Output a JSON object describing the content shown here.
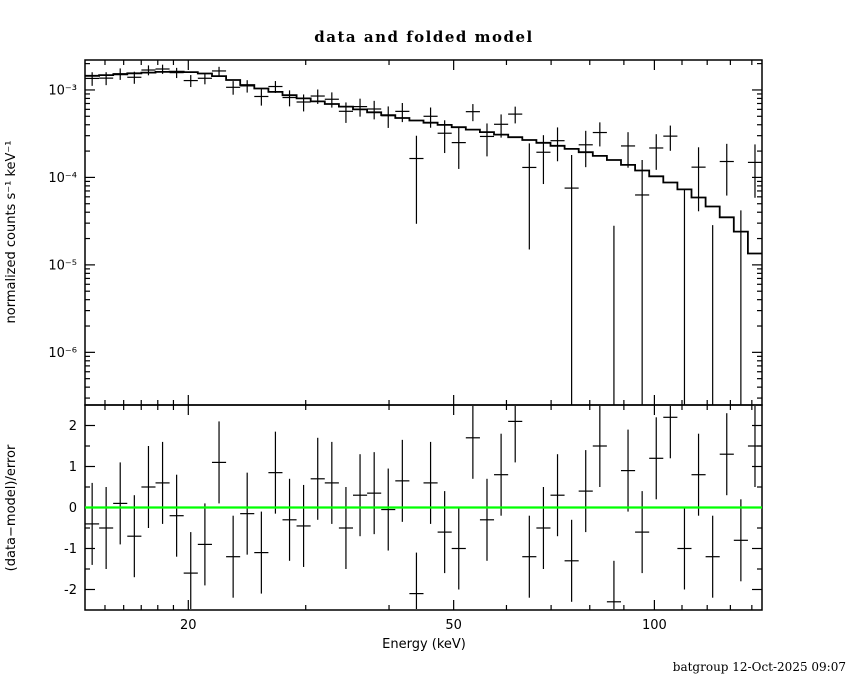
{
  "chart_data": {
    "type": "scatter",
    "title": "data and folded model",
    "xlabel": "Energy (keV)",
    "footer": "batgroup 12-Oct-2025 09:07",
    "xscale": "log",
    "xlim": [
      14,
      145
    ],
    "x_major_ticks": [
      20,
      50,
      100
    ],
    "x_tick_labels": [
      "20",
      "50",
      "100"
    ],
    "x_minor_ticks": [
      15,
      16,
      17,
      18,
      19,
      30,
      40,
      60,
      70,
      80,
      90,
      110,
      120,
      130,
      140
    ],
    "grid": "off",
    "legend": "none",
    "colors": {
      "data": "#000000",
      "model": "#000000",
      "zero_line": "#00ff00",
      "axes": "#000000",
      "background": "#ffffff"
    },
    "panels": [
      {
        "name": "spectrum",
        "ylabel": "normalized counts s⁻¹ keV⁻¹",
        "yscale": "log",
        "ylim": [
          2.5e-07,
          0.0022
        ],
        "y_major_ticks": [
          0.001,
          0.0001,
          1e-05,
          1e-06
        ],
        "y_tick_labels": [
          "10⁻³",
          "10⁻⁴",
          "10⁻⁵",
          "10⁻⁶"
        ]
      },
      {
        "name": "residuals",
        "ylabel": "(data−model)/error",
        "yscale": "linear",
        "ylim": [
          -2.5,
          2.5
        ],
        "y_major_ticks": [
          2,
          1,
          0,
          -1,
          -2
        ],
        "y_tick_labels": [
          "2",
          "1",
          "0",
          "-1",
          "-2"
        ],
        "y_minor_ticks": [
          1.5,
          0.5,
          -0.5,
          -1.5
        ],
        "zero_line": 0,
        "residual_error": 1
      }
    ],
    "bins": {
      "data_rule": "data = model + residual_sigma * error",
      "energy_kev": [
        14.35,
        15.06,
        15.81,
        16.6,
        17.43,
        18.3,
        19.21,
        20.17,
        21.18,
        22.24,
        23.35,
        24.51,
        25.74,
        27.02,
        28.37,
        29.78,
        31.27,
        32.83,
        34.47,
        36.19,
        38.0,
        39.89,
        41.88,
        43.97,
        46.17,
        48.47,
        50.89,
        53.43,
        56.1,
        58.9,
        61.84,
        64.93,
        68.17,
        71.57,
        75.14,
        78.89,
        82.83,
        86.96,
        91.3,
        95.86,
        100.64,
        105.66,
        110.94,
        116.47,
        122.29,
        128.39,
        134.8,
        141.53
      ],
      "model": [
        0.00145,
        0.00148,
        0.00151,
        0.00155,
        0.00158,
        0.00161,
        0.00162,
        0.0016,
        0.00154,
        0.00144,
        0.0013,
        0.00114,
        0.00104,
        0.00095,
        0.00087,
        0.0008,
        0.00074,
        0.00069,
        0.000645,
        0.0006,
        0.000555,
        0.000515,
        0.000478,
        0.000448,
        0.000422,
        0.000398,
        0.000375,
        0.000352,
        0.00033,
        0.000309,
        0.000288,
        0.000268,
        0.000249,
        0.00023,
        0.000212,
        0.000194,
        0.000176,
        0.000158,
        0.000139,
        0.00012,
        0.000103,
        8.75e-05,
        7.3e-05,
        5.9e-05,
        4.65e-05,
        3.5e-05,
        2.4e-05,
        1.35e-05
      ],
      "error": [
        0.00024,
        0.00023,
        0.00023,
        0.00022,
        0.00022,
        0.00021,
        0.00021,
        0.0002,
        0.0002,
        0.00019,
        0.00019,
        0.00018,
        0.00018,
        0.00017,
        0.00017,
        0.00016,
        0.00016,
        0.000155,
        0.00015,
        0.00015,
        0.000145,
        0.00014,
        0.00014,
        0.000135,
        0.00013,
        0.00013,
        0.000125,
        0.000125,
        0.00012,
        0.00012,
        0.000115,
        0.000115,
        0.00011,
        0.00011,
        0.000105,
        0.000105,
        0.0001,
        0.0001,
        0.0001,
        9.5e-05,
        9.5e-05,
        9.5e-05,
        9e-05,
        9e-05,
        9e-05,
        9e-05,
        9e-05,
        9e-05
      ],
      "residual_sigma": [
        -0.4,
        -0.5,
        0.1,
        -0.7,
        0.5,
        0.6,
        -0.2,
        -1.6,
        -0.9,
        1.1,
        -1.2,
        -0.15,
        -1.1,
        0.85,
        -0.3,
        -0.45,
        0.7,
        0.6,
        -0.5,
        0.3,
        0.35,
        -0.05,
        0.65,
        -2.1,
        0.6,
        -0.6,
        -1.0,
        1.7,
        -0.3,
        0.8,
        2.1,
        -1.2,
        -0.5,
        0.3,
        -1.3,
        0.4,
        1.5,
        -2.3,
        0.9,
        -0.6,
        1.2,
        2.2,
        -1.0,
        0.8,
        -1.2,
        1.3,
        -0.8,
        1.5
      ]
    }
  }
}
